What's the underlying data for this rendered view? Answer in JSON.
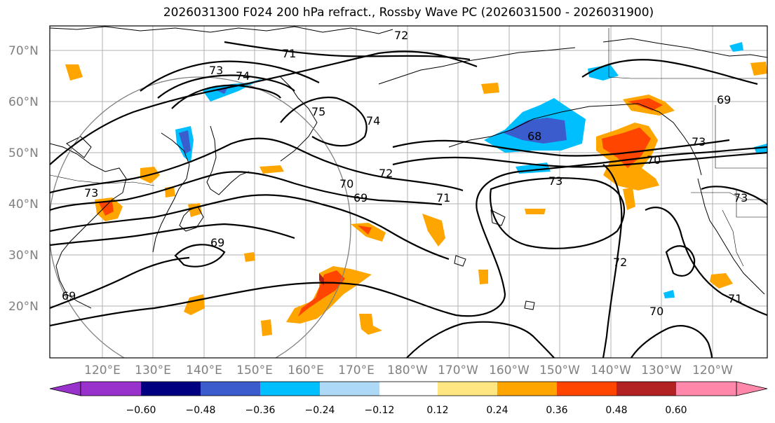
{
  "title": "2026031300 F024 200 hPa refract., Rossby Wave PC (2026031500 - 2026031900)",
  "lat_labels": [
    "70°N",
    "60°N",
    "50°N",
    "40°N",
    "30°N",
    "20°N"
  ],
  "lon_labels": [
    "120°E",
    "130°E",
    "140°E",
    "150°E",
    "160°E",
    "170°E",
    "180°W",
    "170°W",
    "160°W",
    "150°W",
    "140°W",
    "130°W",
    "120°W"
  ],
  "colorbar": {
    "colors": [
      "#9932cc",
      "#000080",
      "#3a5ccc",
      "#00bfff",
      "#add8f6",
      "#ffffff",
      "#ffe680",
      "#ffa500",
      "#ff4500",
      "#b22222",
      "#ff88aa"
    ],
    "tick_labels": [
      "−0.60",
      "−0.48",
      "−0.36",
      "−0.24",
      "−0.12",
      "0.12",
      "0.24",
      "0.36",
      "0.48",
      "0.60"
    ]
  },
  "contour_labels": [
    "71",
    "73",
    "74",
    "75",
    "74",
    "73",
    "72",
    "70",
    "69",
    "71",
    "73",
    "68",
    "69",
    "70",
    "72",
    "71",
    "69",
    "69",
    "73",
    "70",
    "73",
    "72"
  ]
}
